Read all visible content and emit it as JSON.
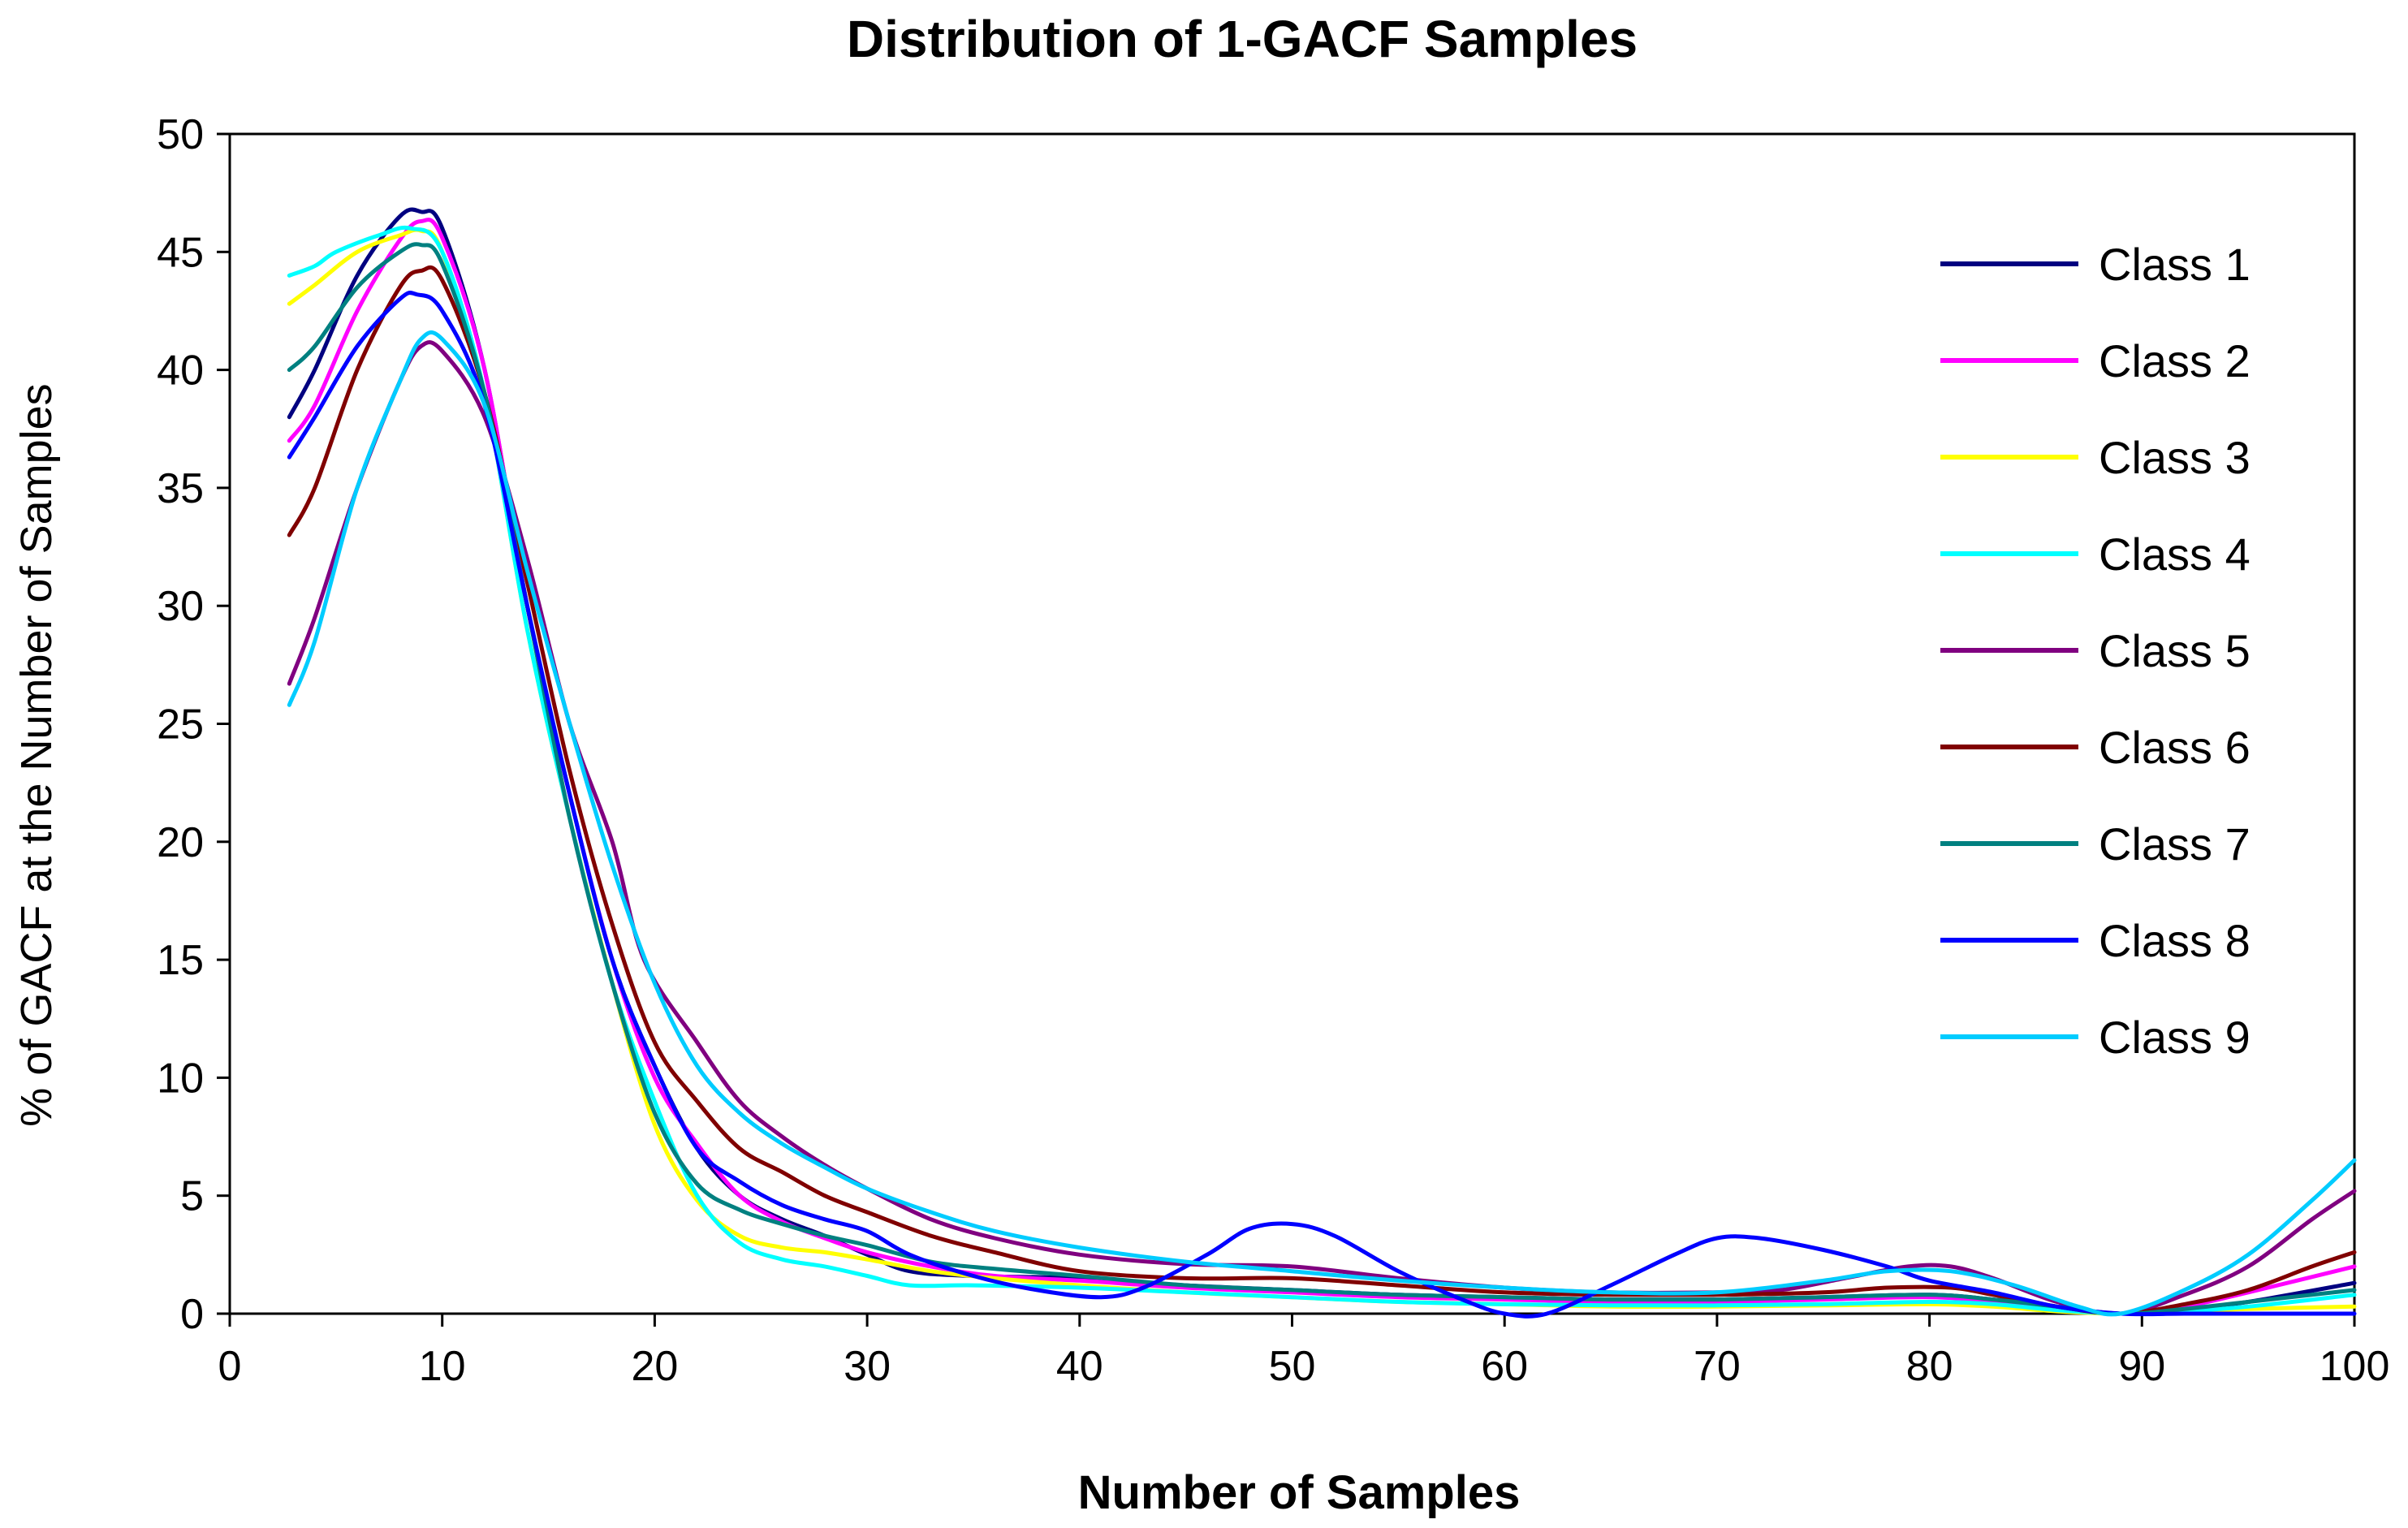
{
  "chart_data": {
    "type": "line",
    "title": "Distribution of 1-GACF Samples",
    "xlabel": "Number of Samples",
    "ylabel": "% of GACF at the Number of Samples",
    "xlim": [
      0,
      100
    ],
    "ylim": [
      0,
      50
    ],
    "x_ticks": [
      0,
      10,
      20,
      30,
      40,
      50,
      60,
      70,
      80,
      90,
      100
    ],
    "y_ticks": [
      0,
      5,
      10,
      15,
      20,
      25,
      30,
      35,
      40,
      45,
      50
    ],
    "grid": false,
    "legend_position": "right",
    "series": [
      {
        "name": "Class 1",
        "color": "#000080",
        "points": [
          [
            2.8,
            38
          ],
          [
            4,
            40
          ],
          [
            6,
            44
          ],
          [
            8,
            46.5
          ],
          [
            9,
            46.7
          ],
          [
            10,
            46
          ],
          [
            12,
            40
          ],
          [
            14,
            30
          ],
          [
            16,
            22
          ],
          [
            18,
            15
          ],
          [
            20,
            10.5
          ],
          [
            22,
            7
          ],
          [
            24,
            5
          ],
          [
            26,
            4
          ],
          [
            28,
            3.3
          ],
          [
            30,
            2.5
          ],
          [
            32,
            1.8
          ],
          [
            35,
            1.6
          ],
          [
            40,
            1.5
          ],
          [
            45,
            1.2
          ],
          [
            50,
            1
          ],
          [
            55,
            0.8
          ],
          [
            60,
            0.7
          ],
          [
            65,
            0.6
          ],
          [
            70,
            0.6
          ],
          [
            75,
            0.7
          ],
          [
            80,
            0.8
          ],
          [
            83,
            0.6
          ],
          [
            86,
            0.3
          ],
          [
            89,
            0
          ],
          [
            92,
            0.2
          ],
          [
            95,
            0.5
          ],
          [
            100,
            1.3
          ]
        ]
      },
      {
        "name": "Class 2",
        "color": "#ff00ff",
        "points": [
          [
            2.8,
            37
          ],
          [
            4,
            38.5
          ],
          [
            6,
            42.5
          ],
          [
            8,
            45.5
          ],
          [
            9,
            46.3
          ],
          [
            10,
            45.6
          ],
          [
            12,
            40
          ],
          [
            14,
            30
          ],
          [
            16,
            22
          ],
          [
            18,
            15
          ],
          [
            20,
            10
          ],
          [
            22,
            7.2
          ],
          [
            24,
            5
          ],
          [
            26,
            3.9
          ],
          [
            28,
            3.2
          ],
          [
            30,
            2.6
          ],
          [
            33,
            2
          ],
          [
            36,
            1.6
          ],
          [
            40,
            1.4
          ],
          [
            45,
            1.1
          ],
          [
            50,
            0.9
          ],
          [
            55,
            0.7
          ],
          [
            60,
            0.6
          ],
          [
            65,
            0.5
          ],
          [
            70,
            0.5
          ],
          [
            75,
            0.6
          ],
          [
            80,
            0.7
          ],
          [
            83,
            0.5
          ],
          [
            86,
            0.2
          ],
          [
            89,
            0
          ],
          [
            92,
            0.3
          ],
          [
            95,
            0.9
          ],
          [
            100,
            2
          ]
        ]
      },
      {
        "name": "Class 3",
        "color": "#ffff00",
        "points": [
          [
            2.8,
            42.8
          ],
          [
            4,
            43.6
          ],
          [
            6,
            45
          ],
          [
            8,
            45.7
          ],
          [
            9,
            45.9
          ],
          [
            10,
            45
          ],
          [
            12,
            39
          ],
          [
            14,
            29
          ],
          [
            16,
            21
          ],
          [
            18,
            14
          ],
          [
            20,
            8
          ],
          [
            22,
            4.8
          ],
          [
            24,
            3.3
          ],
          [
            26,
            2.8
          ],
          [
            28,
            2.6
          ],
          [
            30,
            2.3
          ],
          [
            33,
            1.8
          ],
          [
            36,
            1.5
          ],
          [
            40,
            1.2
          ],
          [
            45,
            0.9
          ],
          [
            50,
            0.7
          ],
          [
            55,
            0.5
          ],
          [
            60,
            0.4
          ],
          [
            65,
            0.3
          ],
          [
            70,
            0.3
          ],
          [
            75,
            0.35
          ],
          [
            80,
            0.4
          ],
          [
            83,
            0.3
          ],
          [
            86,
            0.1
          ],
          [
            89,
            0
          ],
          [
            92,
            0.1
          ],
          [
            95,
            0.2
          ],
          [
            100,
            0.3
          ]
        ]
      },
      {
        "name": "Class 4",
        "color": "#00ffff",
        "points": [
          [
            2.8,
            44
          ],
          [
            4,
            44.4
          ],
          [
            5,
            45
          ],
          [
            7,
            45.7
          ],
          [
            8.5,
            46
          ],
          [
            10,
            45
          ],
          [
            12,
            39
          ],
          [
            14,
            29
          ],
          [
            16,
            21
          ],
          [
            18,
            14
          ],
          [
            20,
            9
          ],
          [
            22,
            5
          ],
          [
            24,
            3
          ],
          [
            26,
            2.3
          ],
          [
            28,
            2
          ],
          [
            30,
            1.6
          ],
          [
            32,
            1.2
          ],
          [
            35,
            1.2
          ],
          [
            40,
            1.1
          ],
          [
            45,
            0.9
          ],
          [
            50,
            0.7
          ],
          [
            55,
            0.5
          ],
          [
            60,
            0.4
          ],
          [
            65,
            0.35
          ],
          [
            70,
            0.35
          ],
          [
            75,
            0.4
          ],
          [
            80,
            0.5
          ],
          [
            83,
            0.4
          ],
          [
            86,
            0.15
          ],
          [
            89,
            0
          ],
          [
            92,
            0.1
          ],
          [
            95,
            0.3
          ],
          [
            100,
            0.8
          ]
        ]
      },
      {
        "name": "Class 5",
        "color": "#800080",
        "points": [
          [
            2.8,
            26.7
          ],
          [
            4,
            29.5
          ],
          [
            6,
            35
          ],
          [
            8,
            39.5
          ],
          [
            9,
            41
          ],
          [
            10,
            40.8
          ],
          [
            12,
            38
          ],
          [
            14,
            32
          ],
          [
            16,
            25
          ],
          [
            18,
            20
          ],
          [
            19.5,
            15
          ],
          [
            22,
            11.5
          ],
          [
            24,
            9
          ],
          [
            26,
            7.5
          ],
          [
            28,
            6.3
          ],
          [
            30,
            5.3
          ],
          [
            33,
            4
          ],
          [
            36,
            3.2
          ],
          [
            40,
            2.5
          ],
          [
            45,
            2.1
          ],
          [
            50,
            2
          ],
          [
            55,
            1.5
          ],
          [
            60,
            1.1
          ],
          [
            65,
            0.9
          ],
          [
            70,
            0.9
          ],
          [
            73,
            1
          ],
          [
            76,
            1.5
          ],
          [
            79,
            2
          ],
          [
            81,
            2
          ],
          [
            83,
            1.5
          ],
          [
            86,
            0.5
          ],
          [
            89,
            0
          ],
          [
            92,
            0.8
          ],
          [
            95,
            2
          ],
          [
            98,
            4
          ],
          [
            100,
            5.2
          ]
        ]
      },
      {
        "name": "Class 6",
        "color": "#800000",
        "points": [
          [
            2.8,
            33
          ],
          [
            4,
            35
          ],
          [
            6,
            40
          ],
          [
            8,
            43.5
          ],
          [
            9,
            44.2
          ],
          [
            10,
            43.8
          ],
          [
            12,
            39
          ],
          [
            14,
            31
          ],
          [
            16,
            23
          ],
          [
            18,
            16.5
          ],
          [
            20,
            11.5
          ],
          [
            22,
            9
          ],
          [
            24,
            7
          ],
          [
            26,
            6
          ],
          [
            28,
            5
          ],
          [
            30,
            4.3
          ],
          [
            33,
            3.3
          ],
          [
            36,
            2.6
          ],
          [
            40,
            1.8
          ],
          [
            45,
            1.5
          ],
          [
            50,
            1.5
          ],
          [
            55,
            1.2
          ],
          [
            60,
            0.9
          ],
          [
            65,
            0.8
          ],
          [
            70,
            0.8
          ],
          [
            75,
            0.9
          ],
          [
            78,
            1.1
          ],
          [
            81,
            1.1
          ],
          [
            83,
            0.8
          ],
          [
            86,
            0.3
          ],
          [
            89,
            0
          ],
          [
            92,
            0.4
          ],
          [
            95,
            1
          ],
          [
            98,
            2
          ],
          [
            100,
            2.6
          ]
        ]
      },
      {
        "name": "Class 7",
        "color": "#008080",
        "points": [
          [
            2.8,
            40
          ],
          [
            4,
            41
          ],
          [
            6,
            43.5
          ],
          [
            8,
            45
          ],
          [
            9,
            45.3
          ],
          [
            10,
            44.5
          ],
          [
            12,
            39
          ],
          [
            14,
            30
          ],
          [
            16,
            21
          ],
          [
            18,
            14
          ],
          [
            20,
            8.5
          ],
          [
            22,
            5.5
          ],
          [
            24,
            4.4
          ],
          [
            26,
            3.8
          ],
          [
            28,
            3.3
          ],
          [
            30,
            2.9
          ],
          [
            33,
            2.2
          ],
          [
            36,
            1.9
          ],
          [
            40,
            1.6
          ],
          [
            45,
            1.2
          ],
          [
            50,
            1
          ],
          [
            55,
            0.8
          ],
          [
            60,
            0.7
          ],
          [
            65,
            0.6
          ],
          [
            70,
            0.6
          ],
          [
            75,
            0.7
          ],
          [
            80,
            0.8
          ],
          [
            83,
            0.6
          ],
          [
            86,
            0.3
          ],
          [
            89,
            0
          ],
          [
            92,
            0.2
          ],
          [
            95,
            0.5
          ],
          [
            100,
            1
          ]
        ]
      },
      {
        "name": "Class 8",
        "color": "#0000ff",
        "points": [
          [
            2.8,
            36.3
          ],
          [
            4,
            38
          ],
          [
            6,
            41
          ],
          [
            8,
            43
          ],
          [
            8.8,
            43.2
          ],
          [
            10,
            42.5
          ],
          [
            12,
            38.5
          ],
          [
            14,
            30
          ],
          [
            16,
            22
          ],
          [
            18,
            15
          ],
          [
            20,
            10.5
          ],
          [
            22,
            7
          ],
          [
            24,
            5.6
          ],
          [
            26,
            4.6
          ],
          [
            28,
            4
          ],
          [
            30,
            3.5
          ],
          [
            32,
            2.5
          ],
          [
            35,
            1.6
          ],
          [
            38,
            1
          ],
          [
            41,
            0.7
          ],
          [
            43,
            1.1
          ],
          [
            46,
            2.5
          ],
          [
            48,
            3.6
          ],
          [
            50,
            3.8
          ],
          [
            52,
            3.3
          ],
          [
            55,
            1.8
          ],
          [
            58,
            0.6
          ],
          [
            60,
            0
          ],
          [
            62,
            0
          ],
          [
            65,
            1.2
          ],
          [
            68,
            2.5
          ],
          [
            70,
            3.2
          ],
          [
            72,
            3.2
          ],
          [
            75,
            2.7
          ],
          [
            78,
            2
          ],
          [
            80,
            1.4
          ],
          [
            83,
            0.9
          ],
          [
            86,
            0.3
          ],
          [
            89,
            0
          ],
          [
            92,
            0
          ],
          [
            95,
            0
          ],
          [
            100,
            0
          ]
        ]
      },
      {
        "name": "Class 9",
        "color": "#00ccff",
        "points": [
          [
            2.8,
            25.8
          ],
          [
            4,
            28.5
          ],
          [
            6,
            35
          ],
          [
            8,
            39.5
          ],
          [
            9,
            41.3
          ],
          [
            10,
            41.3
          ],
          [
            12,
            38.5
          ],
          [
            14,
            31.5
          ],
          [
            16,
            25
          ],
          [
            18,
            19
          ],
          [
            20,
            14
          ],
          [
            22,
            10.5
          ],
          [
            24,
            8.5
          ],
          [
            26,
            7.2
          ],
          [
            28,
            6.2
          ],
          [
            30,
            5.3
          ],
          [
            33,
            4.3
          ],
          [
            36,
            3.5
          ],
          [
            40,
            2.8
          ],
          [
            45,
            2.2
          ],
          [
            50,
            1.8
          ],
          [
            55,
            1.4
          ],
          [
            60,
            1.1
          ],
          [
            65,
            0.9
          ],
          [
            70,
            0.9
          ],
          [
            75,
            1.4
          ],
          [
            78,
            1.8
          ],
          [
            81,
            1.8
          ],
          [
            84,
            1.2
          ],
          [
            87,
            0.3
          ],
          [
            89,
            0
          ],
          [
            92,
            1
          ],
          [
            95,
            2.5
          ],
          [
            98,
            4.8
          ],
          [
            100,
            6.5
          ]
        ]
      }
    ]
  }
}
